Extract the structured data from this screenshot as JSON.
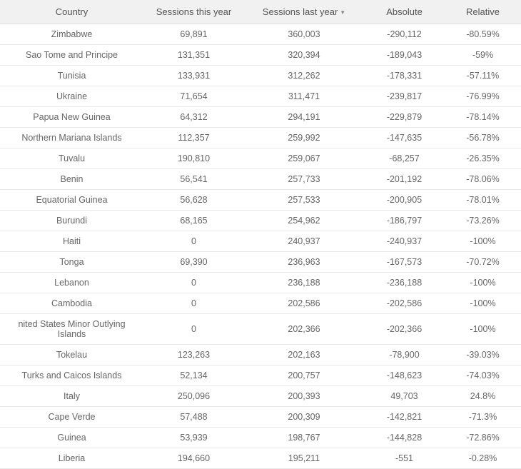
{
  "table": {
    "columns": [
      {
        "key": "country",
        "label": "Country",
        "class": "col-country"
      },
      {
        "key": "sessions_this_year",
        "label": "Sessions this year",
        "class": "col-this-year"
      },
      {
        "key": "sessions_last_year",
        "label": "Sessions last year",
        "class": "col-last-year",
        "sorted": "desc"
      },
      {
        "key": "absolute",
        "label": "Absolute",
        "class": "col-absolute"
      },
      {
        "key": "relative",
        "label": "Relative",
        "class": "col-relative"
      }
    ],
    "rows": [
      {
        "country": "Zimbabwe",
        "sessions_this_year": "69,891",
        "sessions_last_year": "360,003",
        "absolute": "-290,112",
        "relative": "-80.59%"
      },
      {
        "country": "Sao Tome and Principe",
        "sessions_this_year": "131,351",
        "sessions_last_year": "320,394",
        "absolute": "-189,043",
        "relative": "-59%"
      },
      {
        "country": "Tunisia",
        "sessions_this_year": "133,931",
        "sessions_last_year": "312,262",
        "absolute": "-178,331",
        "relative": "-57.11%"
      },
      {
        "country": "Ukraine",
        "sessions_this_year": "71,654",
        "sessions_last_year": "311,471",
        "absolute": "-239,817",
        "relative": "-76.99%"
      },
      {
        "country": "Papua New Guinea",
        "sessions_this_year": "64,312",
        "sessions_last_year": "294,191",
        "absolute": "-229,879",
        "relative": "-78.14%"
      },
      {
        "country": "Northern Mariana Islands",
        "sessions_this_year": "112,357",
        "sessions_last_year": "259,992",
        "absolute": "-147,635",
        "relative": "-56.78%"
      },
      {
        "country": "Tuvalu",
        "sessions_this_year": "190,810",
        "sessions_last_year": "259,067",
        "absolute": "-68,257",
        "relative": "-26.35%"
      },
      {
        "country": "Benin",
        "sessions_this_year": "56,541",
        "sessions_last_year": "257,733",
        "absolute": "-201,192",
        "relative": "-78.06%"
      },
      {
        "country": "Equatorial Guinea",
        "sessions_this_year": "56,628",
        "sessions_last_year": "257,533",
        "absolute": "-200,905",
        "relative": "-78.01%"
      },
      {
        "country": "Burundi",
        "sessions_this_year": "68,165",
        "sessions_last_year": "254,962",
        "absolute": "-186,797",
        "relative": "-73.26%"
      },
      {
        "country": "Haiti",
        "sessions_this_year": "0",
        "sessions_last_year": "240,937",
        "absolute": "-240,937",
        "relative": "-100%"
      },
      {
        "country": "Tonga",
        "sessions_this_year": "69,390",
        "sessions_last_year": "236,963",
        "absolute": "-167,573",
        "relative": "-70.72%"
      },
      {
        "country": "Lebanon",
        "sessions_this_year": "0",
        "sessions_last_year": "236,188",
        "absolute": "-236,188",
        "relative": "-100%"
      },
      {
        "country": "Cambodia",
        "sessions_this_year": "0",
        "sessions_last_year": "202,586",
        "absolute": "-202,586",
        "relative": "-100%"
      },
      {
        "country": "nited States Minor Outlying Islands",
        "sessions_this_year": "0",
        "sessions_last_year": "202,366",
        "absolute": "-202,366",
        "relative": "-100%"
      },
      {
        "country": "Tokelau",
        "sessions_this_year": "123,263",
        "sessions_last_year": "202,163",
        "absolute": "-78,900",
        "relative": "-39.03%"
      },
      {
        "country": "Turks and Caicos Islands",
        "sessions_this_year": "52,134",
        "sessions_last_year": "200,757",
        "absolute": "-148,623",
        "relative": "-74.03%"
      },
      {
        "country": "Italy",
        "sessions_this_year": "250,096",
        "sessions_last_year": "200,393",
        "absolute": "49,703",
        "relative": "24.8%"
      },
      {
        "country": "Cape Verde",
        "sessions_this_year": "57,488",
        "sessions_last_year": "200,309",
        "absolute": "-142,821",
        "relative": "-71.3%"
      },
      {
        "country": "Guinea",
        "sessions_this_year": "53,939",
        "sessions_last_year": "198,767",
        "absolute": "-144,828",
        "relative": "-72.86%"
      },
      {
        "country": "Liberia",
        "sessions_this_year": "194,660",
        "sessions_last_year": "195,211",
        "absolute": "-551",
        "relative": "-0.28%"
      }
    ],
    "styling": {
      "header_bg": "#f1f1f1",
      "row_border": "#e8e8e8",
      "text_color": "#666666",
      "header_text_color": "#555555",
      "font_size_header": 13,
      "font_size_data": 12.5
    }
  }
}
